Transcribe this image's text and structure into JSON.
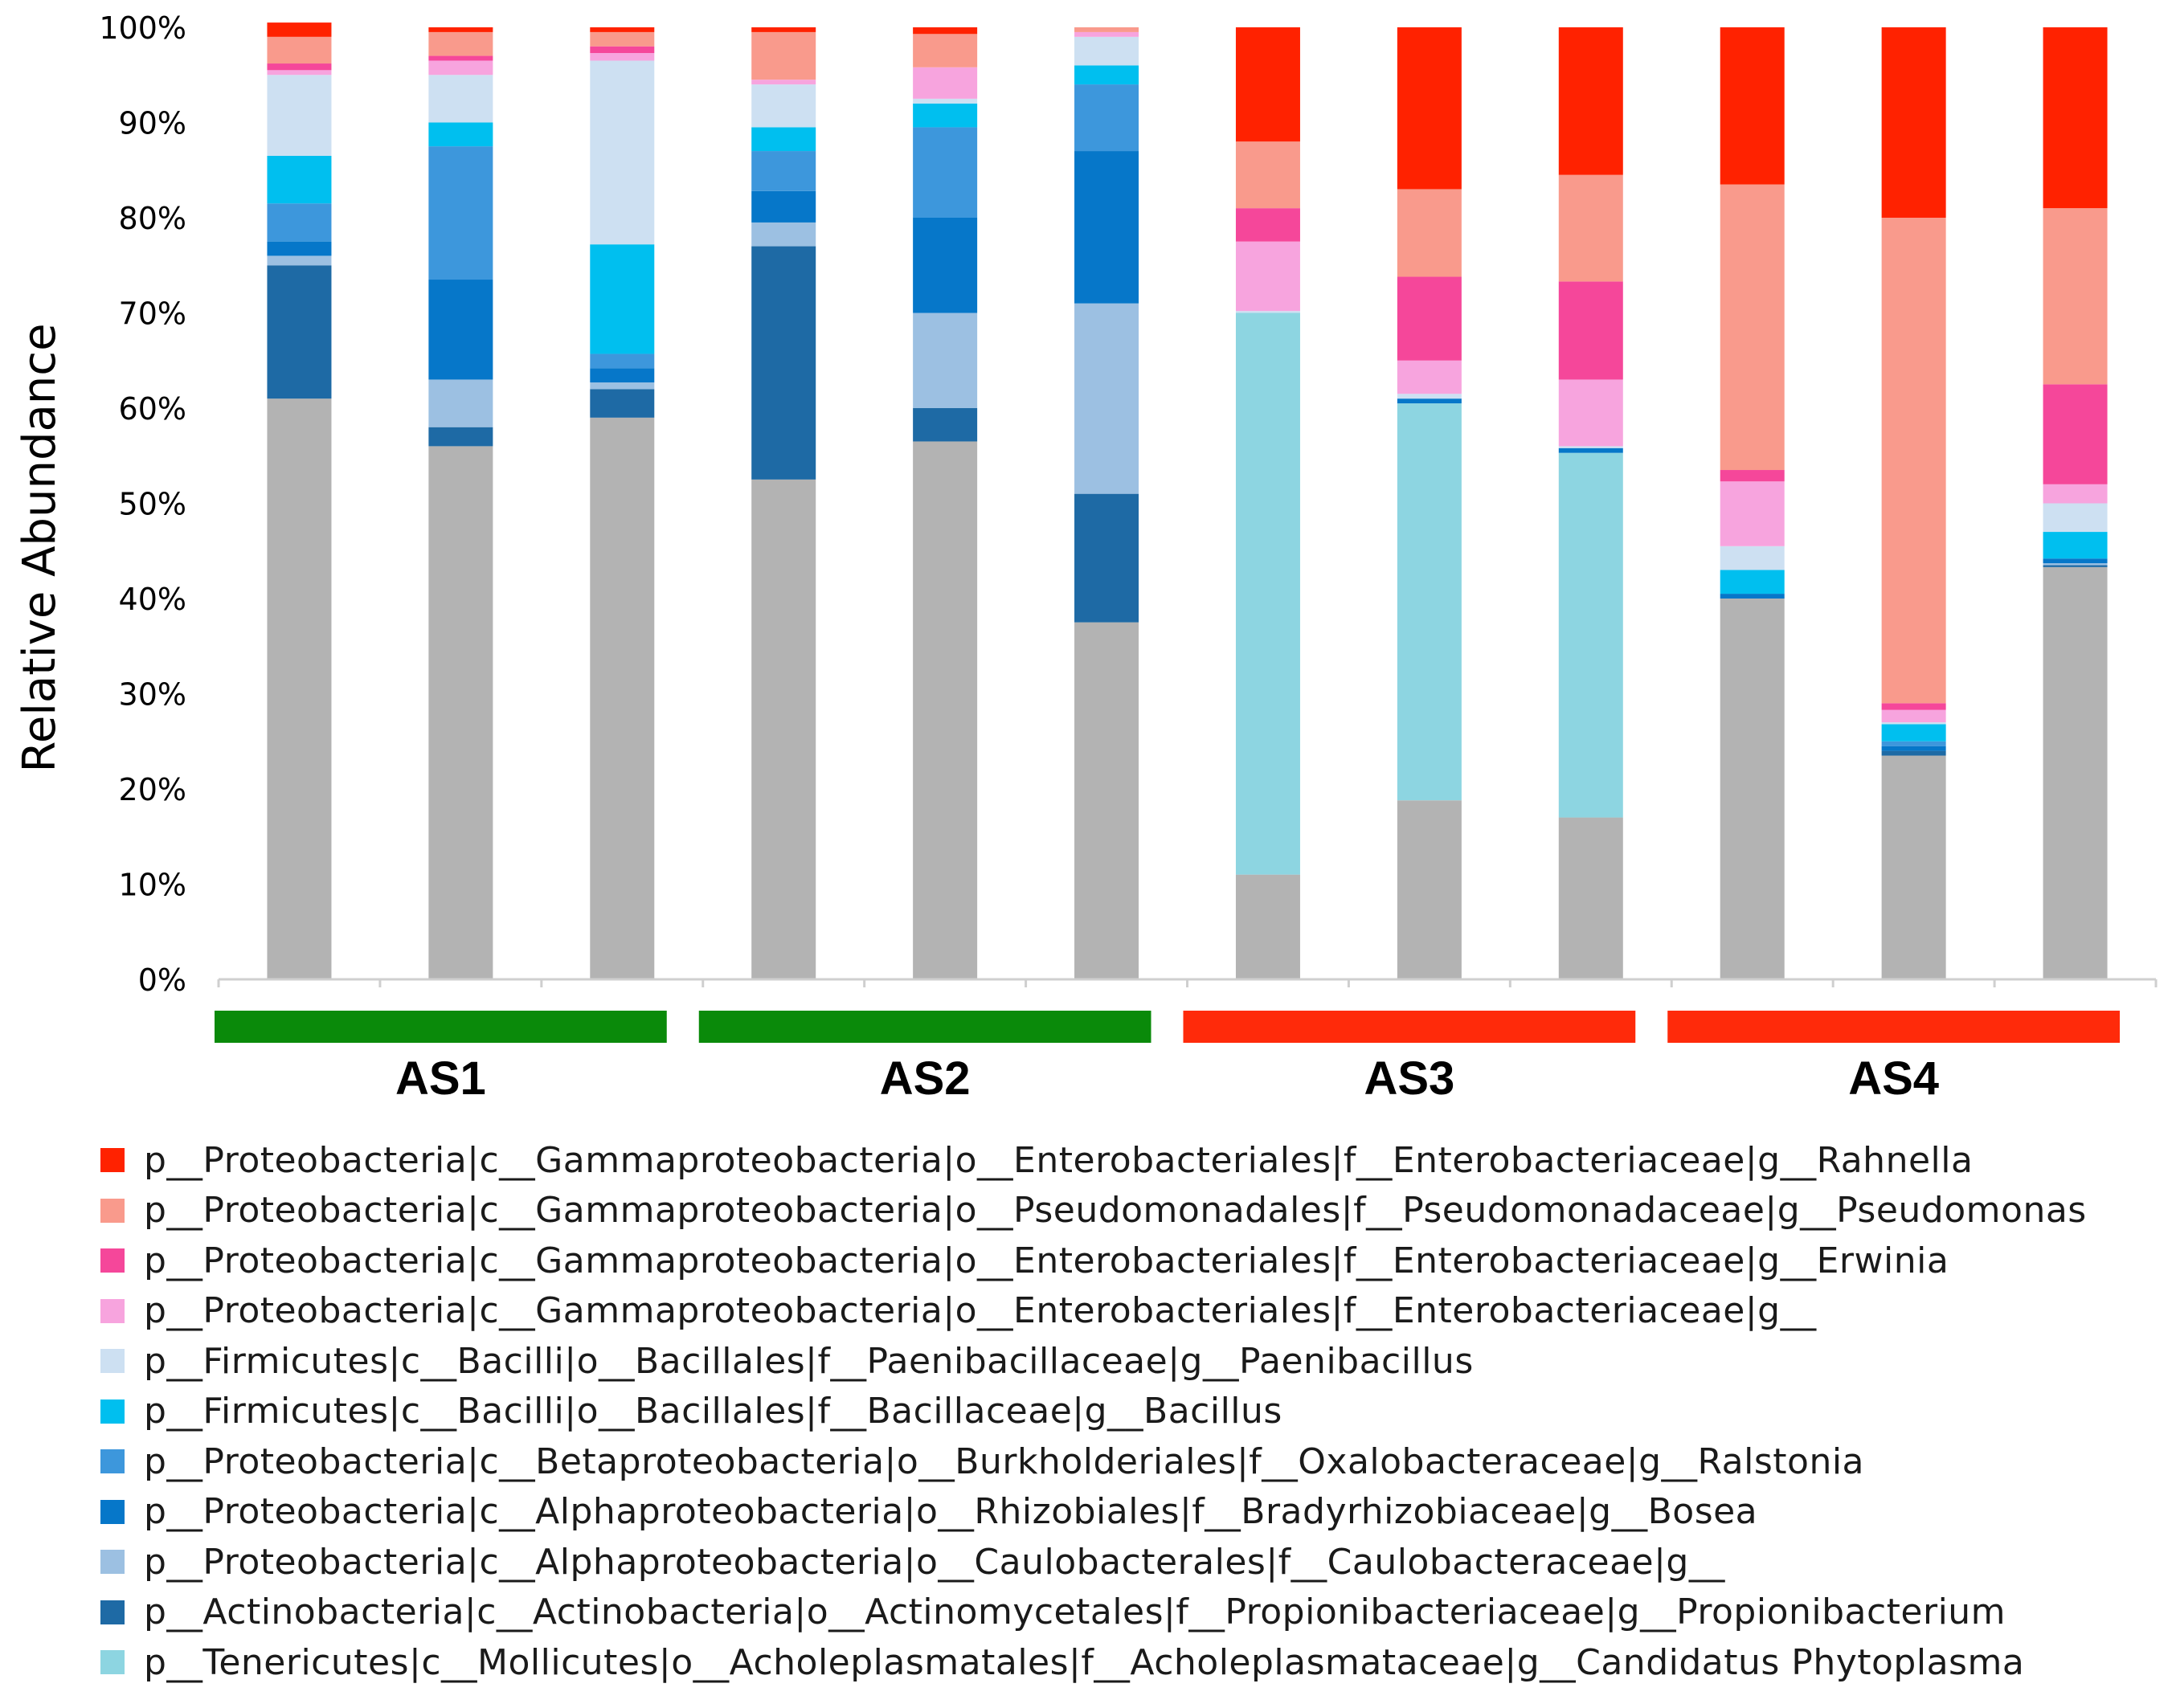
{
  "chart_data": {
    "type": "bar",
    "stacked": true,
    "ylabel": "Relative Abundance",
    "ylim": [
      0,
      100
    ],
    "yticks": [
      "0%",
      "10%",
      "20%",
      "30%",
      "40%",
      "50%",
      "60%",
      "70%",
      "80%",
      "90%",
      "100%"
    ],
    "grid": false,
    "groups": [
      {
        "label": "AS1",
        "color": "#0a8a0a",
        "bars": [
          0,
          1,
          2
        ]
      },
      {
        "label": "AS2",
        "color": "#0a8a0a",
        "bars": [
          3,
          4,
          5
        ]
      },
      {
        "label": "AS3",
        "color": "#ff2a0a",
        "bars": [
          6,
          7,
          8
        ]
      },
      {
        "label": "AS4",
        "color": "#ff2a0a",
        "bars": [
          9,
          10,
          11
        ]
      }
    ],
    "other_color": "#b3b3b3",
    "legend": [
      {
        "key": "rahnella",
        "label": "p__Proteobacteria|c__Gammaproteobacteria|o__Enterobacteriales|f__Enterobacteriaceae|g__Rahnella",
        "color": "#ff2200"
      },
      {
        "key": "pseudomonas",
        "label": "p__Proteobacteria|c__Gammaproteobacteria|o__Pseudomonadales|f__Pseudomonadaceae|g__Pseudomonas",
        "color": "#f99a8c"
      },
      {
        "key": "erwinia",
        "label": "p__Proteobacteria|c__Gammaproteobacteria|o__Enterobacteriales|f__Enterobacteriaceae|g__Erwinia",
        "color": "#f5479a"
      },
      {
        "key": "enterobacteriaceae",
        "label": "p__Proteobacteria|c__Gammaproteobacteria|o__Enterobacteriales|f__Enterobacteriaceae|g__",
        "color": "#f7a4de"
      },
      {
        "key": "paenibacillus",
        "label": "p__Firmicutes|c__Bacilli|o__Bacillales|f__Paenibacillaceae|g__Paenibacillus",
        "color": "#cde0f2"
      },
      {
        "key": "bacillus",
        "label": "p__Firmicutes|c__Bacilli|o__Bacillales|f__Bacillaceae|g__Bacillus",
        "color": "#00bfef"
      },
      {
        "key": "ralstonia",
        "label": "p__Proteobacteria|c__Betaproteobacteria|o__Burkholderiales|f__Oxalobacteraceae|g__Ralstonia",
        "color": "#3d97dc"
      },
      {
        "key": "bosea",
        "label": "p__Proteobacteria|c__Alphaproteobacteria|o__Rhizobiales|f__Bradyrhizobiaceae|g__Bosea",
        "color": "#0677c9"
      },
      {
        "key": "caulobacteraceae",
        "label": "p__Proteobacteria|c__Alphaproteobacteria|o__Caulobacterales|f__Caulobacteraceae|g__",
        "color": "#9cc0e2"
      },
      {
        "key": "propionibacterium",
        "label": "p__Actinobacteria|c__Actinobacteria|o__Actinomycetales|f__Propionibacteriaceae|g__Propionibacterium",
        "color": "#1e6aa5"
      },
      {
        "key": "phytoplasma",
        "label": "p__Tenericutes|c__Mollicutes|o__Acholeplasmatales|f__Acholeplasmataceae|g__Candidatus Phytoplasma",
        "color": "#8dd5e1"
      }
    ],
    "series_order_bottom_to_top": [
      "phytoplasma",
      "propionibacterium",
      "caulobacteraceae",
      "bosea",
      "ralstonia",
      "bacillus",
      "paenibacillus",
      "enterobacteriaceae",
      "erwinia",
      "pseudomonas",
      "rahnella"
    ],
    "bars": [
      {
        "group": "AS1",
        "other": 61.0,
        "phytoplasma": 0,
        "propionibacterium": 14.0,
        "caulobacteraceae": 1.0,
        "bosea": 1.5,
        "ralstonia": 4.0,
        "bacillus": 5.0,
        "paenibacillus": 8.5,
        "enterobacteriaceae": 0.5,
        "erwinia": 0.7,
        "pseudomonas": 2.8,
        "rahnella": 1.5
      },
      {
        "group": "AS1",
        "other": 56.0,
        "phytoplasma": 0,
        "propionibacterium": 2.0,
        "caulobacteraceae": 5.0,
        "bosea": 10.5,
        "ralstonia": 14.0,
        "bacillus": 2.5,
        "paenibacillus": 5.0,
        "enterobacteriaceae": 1.5,
        "erwinia": 0.5,
        "pseudomonas": 2.5,
        "rahnella": 0.5
      },
      {
        "group": "AS1",
        "other": 59.0,
        "phytoplasma": 0,
        "propionibacterium": 3.0,
        "caulobacteraceae": 0.7,
        "bosea": 1.5,
        "ralstonia": 1.5,
        "bacillus": 11.5,
        "paenibacillus": 19.3,
        "enterobacteriaceae": 0.8,
        "erwinia": 0.7,
        "pseudomonas": 1.5,
        "rahnella": 0.5
      },
      {
        "group": "AS2",
        "other": 52.5,
        "phytoplasma": 0,
        "propionibacterium": 24.5,
        "caulobacteraceae": 2.5,
        "bosea": 3.3,
        "ralstonia": 4.2,
        "bacillus": 2.5,
        "paenibacillus": 4.5,
        "enterobacteriaceae": 0.5,
        "erwinia": 0,
        "pseudomonas": 5.0,
        "rahnella": 0.5
      },
      {
        "group": "AS2",
        "other": 56.5,
        "phytoplasma": 0,
        "propionibacterium": 3.5,
        "caulobacteraceae": 10.0,
        "bosea": 10.0,
        "ralstonia": 9.5,
        "bacillus": 2.5,
        "paenibacillus": 0.5,
        "enterobacteriaceae": 3.3,
        "erwinia": 0,
        "pseudomonas": 3.5,
        "rahnella": 0.7
      },
      {
        "group": "AS2",
        "other": 37.5,
        "phytoplasma": 0,
        "propionibacterium": 13.5,
        "caulobacteraceae": 20.0,
        "bosea": 16.0,
        "ralstonia": 7.0,
        "bacillus": 2.0,
        "paenibacillus": 3.0,
        "enterobacteriaceae": 0.5,
        "erwinia": 0,
        "pseudomonas": 0.5,
        "rahnella": 0
      },
      {
        "group": "AS3",
        "other": 11.0,
        "phytoplasma": 59.0,
        "propionibacterium": 0,
        "caulobacteraceae": 0,
        "bosea": 0,
        "ralstonia": 0,
        "bacillus": 0,
        "paenibacillus": 0.2,
        "enterobacteriaceae": 7.3,
        "erwinia": 3.5,
        "pseudomonas": 7.0,
        "rahnella": 12.0
      },
      {
        "group": "AS3",
        "other": 18.8,
        "phytoplasma": 41.7,
        "propionibacterium": 0,
        "caulobacteraceae": 0,
        "bosea": 0.5,
        "ralstonia": 0,
        "bacillus": 0,
        "paenibacillus": 0.5,
        "enterobacteriaceae": 3.5,
        "erwinia": 8.8,
        "pseudomonas": 9.2,
        "rahnella": 17.0
      },
      {
        "group": "AS3",
        "other": 17.0,
        "phytoplasma": 38.3,
        "propionibacterium": 0,
        "caulobacteraceae": 0,
        "bosea": 0.5,
        "ralstonia": 0,
        "bacillus": 0,
        "paenibacillus": 0.2,
        "enterobacteriaceae": 7.0,
        "erwinia": 10.3,
        "pseudomonas": 11.2,
        "rahnella": 15.5
      },
      {
        "group": "AS4",
        "other": 40.0,
        "phytoplasma": 0,
        "propionibacterium": 0,
        "caulobacteraceae": 0,
        "bosea": 0.5,
        "ralstonia": 0,
        "bacillus": 2.5,
        "paenibacillus": 2.5,
        "enterobacteriaceae": 6.8,
        "erwinia": 1.2,
        "pseudomonas": 30.0,
        "rahnella": 16.5
      },
      {
        "group": "AS4",
        "other": 23.5,
        "phytoplasma": 0,
        "propionibacterium": 0.5,
        "caulobacteraceae": 0,
        "bosea": 0.5,
        "ralstonia": 0.5,
        "bacillus": 1.8,
        "paenibacillus": 0.2,
        "enterobacteriaceae": 1.3,
        "erwinia": 0.7,
        "pseudomonas": 51.0,
        "rahnella": 20.0
      },
      {
        "group": "AS4",
        "other": 43.3,
        "phytoplasma": 0,
        "propionibacterium": 0.2,
        "caulobacteraceae": 0.2,
        "bosea": 0.5,
        "ralstonia": 0,
        "bacillus": 2.8,
        "paenibacillus": 3.0,
        "enterobacteriaceae": 2.0,
        "erwinia": 10.5,
        "pseudomonas": 18.5,
        "rahnella": 19.0
      }
    ]
  }
}
